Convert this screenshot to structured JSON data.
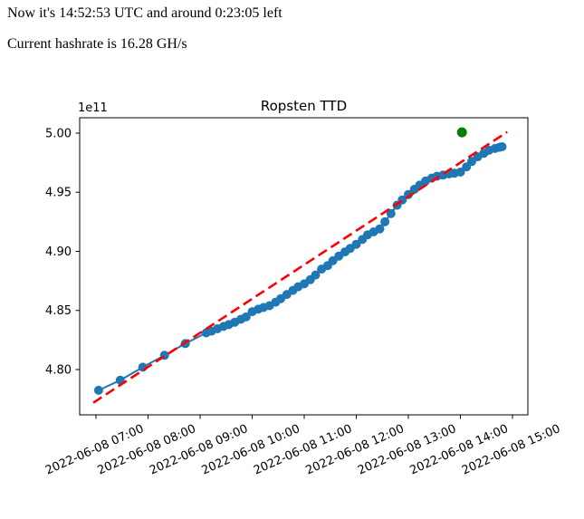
{
  "header": {
    "line1": "Now it's 14:52:53 UTC and around 0:23:05 left",
    "line2": "Current hashrate is 16.28 GH/s"
  },
  "chart_data": {
    "type": "line",
    "title": "Ropsten TTD",
    "offset_label": "1e11",
    "legend": "none",
    "grid": false,
    "x_unit": "hours since 2022-06-08 07:00 UTC",
    "y_unit": "total terminal difficulty, multiplied by 1e11",
    "x_range_hours": [
      -0.313,
      8.296
    ],
    "y_range_1e11": [
      4.7617,
      5.013
    ],
    "x_ticks": [
      {
        "hour": 0,
        "label": "2022-06-08 07:00"
      },
      {
        "hour": 1,
        "label": "2022-06-08 08:00"
      },
      {
        "hour": 2,
        "label": "2022-06-08 09:00"
      },
      {
        "hour": 3,
        "label": "2022-06-08 10:00"
      },
      {
        "hour": 4,
        "label": "2022-06-08 11:00"
      },
      {
        "hour": 5,
        "label": "2022-06-08 12:00"
      },
      {
        "hour": 6,
        "label": "2022-06-08 13:00"
      },
      {
        "hour": 7,
        "label": "2022-06-08 14:00"
      },
      {
        "hour": 8,
        "label": "2022-06-08 15:00"
      }
    ],
    "y_ticks": [
      {
        "value": 4.8,
        "label": "4.80"
      },
      {
        "value": 4.85,
        "label": "4.85"
      },
      {
        "value": 4.9,
        "label": "4.90"
      },
      {
        "value": 4.95,
        "label": "4.95"
      },
      {
        "value": 5.0,
        "label": "5.00"
      }
    ],
    "series": [
      {
        "name": "ttd-actual",
        "type": "line",
        "color": "#1f77b4",
        "marker": true,
        "marker_radius": 5,
        "points": [
          [
            0.05,
            4.7825
          ],
          [
            0.467,
            4.791
          ],
          [
            0.9,
            4.802
          ],
          [
            1.317,
            4.812
          ],
          [
            1.717,
            4.822
          ],
          [
            2.117,
            4.831
          ],
          [
            2.22,
            4.8325
          ],
          [
            2.333,
            4.8345
          ],
          [
            2.45,
            4.8365
          ],
          [
            2.55,
            4.838
          ],
          [
            2.667,
            4.84
          ],
          [
            2.783,
            4.8425
          ],
          [
            2.883,
            4.8445
          ],
          [
            3.0,
            4.849
          ],
          [
            3.117,
            4.851
          ],
          [
            3.217,
            4.8525
          ],
          [
            3.333,
            4.854
          ],
          [
            3.45,
            4.857
          ],
          [
            3.55,
            4.86
          ],
          [
            3.667,
            4.8635
          ],
          [
            3.783,
            4.867
          ],
          [
            3.883,
            4.87
          ],
          [
            4.0,
            4.8725
          ],
          [
            4.117,
            4.876
          ],
          [
            4.217,
            4.88
          ],
          [
            4.333,
            4.885
          ],
          [
            4.45,
            4.888
          ],
          [
            4.55,
            4.892
          ],
          [
            4.667,
            4.896
          ],
          [
            4.783,
            4.8995
          ],
          [
            4.883,
            4.9025
          ],
          [
            5.0,
            4.906
          ],
          [
            5.117,
            4.91
          ],
          [
            5.217,
            4.914
          ],
          [
            5.333,
            4.9165
          ],
          [
            5.45,
            4.919
          ],
          [
            5.55,
            4.925
          ],
          [
            5.667,
            4.932
          ],
          [
            5.783,
            4.939
          ],
          [
            5.883,
            4.9435
          ],
          [
            6.0,
            4.948
          ],
          [
            6.117,
            4.9525
          ],
          [
            6.217,
            4.956
          ],
          [
            6.333,
            4.9595
          ],
          [
            6.45,
            4.962
          ],
          [
            6.55,
            4.9635
          ],
          [
            6.667,
            4.9645
          ],
          [
            6.783,
            4.9655
          ],
          [
            6.883,
            4.966
          ],
          [
            7.0,
            4.967
          ],
          [
            7.117,
            4.9715
          ],
          [
            7.217,
            4.976
          ],
          [
            7.333,
            4.98
          ],
          [
            7.45,
            4.983
          ],
          [
            7.55,
            4.9855
          ],
          [
            7.667,
            4.987
          ],
          [
            7.75,
            4.988
          ],
          [
            7.8,
            4.9885
          ]
        ]
      },
      {
        "name": "ttd-prediction",
        "type": "dashed-line",
        "color": "#ff0000",
        "marker": false,
        "points": [
          [
            -0.05,
            4.772
          ],
          [
            7.9,
            5.001
          ]
        ]
      },
      {
        "name": "ttd-target",
        "type": "marker",
        "color": "#008000",
        "marker": true,
        "marker_radius": 5.5,
        "points": [
          [
            7.03,
            5.0007
          ]
        ]
      }
    ]
  }
}
